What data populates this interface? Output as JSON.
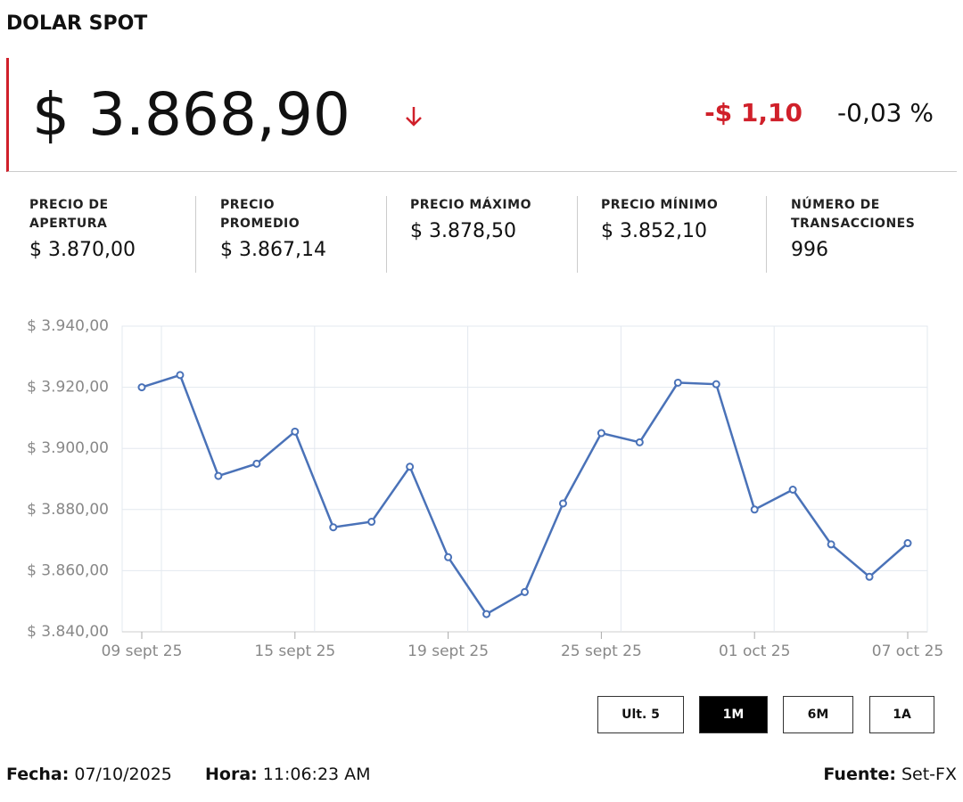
{
  "header": {
    "title": "DOLAR SPOT",
    "price": "$ 3.868,90",
    "change": "-$ 1,10",
    "change_pct": "-0,03 %"
  },
  "stats": [
    {
      "label": "PRECIO DE APERTURA",
      "value": "$ 3.870,00"
    },
    {
      "label": "PRECIO PROMEDIO",
      "value": "$ 3.867,14"
    },
    {
      "label": "PRECIO MÁXIMO",
      "value": "$ 3.878,50"
    },
    {
      "label": "PRECIO MÍNIMO",
      "value": "$ 3.852,10"
    },
    {
      "label": "NÚMERO DE TRANSACCIONES",
      "value": "996"
    }
  ],
  "chart_data": {
    "type": "line",
    "color": "#4a72b8",
    "categories": [
      "09 sept 25",
      null,
      null,
      null,
      "15 sept 25",
      null,
      null,
      null,
      "19 sept 25",
      null,
      null,
      null,
      "25 sept 25",
      null,
      null,
      null,
      "01 oct 25",
      null,
      null,
      null,
      "07 oct 25"
    ],
    "values": [
      3920,
      3924,
      3891,
      3895,
      3905.5,
      3874.2,
      3876,
      3894,
      3864.4,
      3845.8,
      3853,
      3882,
      3905,
      3902,
      3921.5,
      3921,
      3880,
      3886.5,
      3868.6,
      3858,
      3869
    ],
    "ylim": [
      3840,
      3940
    ],
    "yticks": [
      {
        "value": 3840,
        "label": "$ 3.840,00"
      },
      {
        "value": 3860,
        "label": "$ 3.860,00"
      },
      {
        "value": 3880,
        "label": "$ 3.880,00"
      },
      {
        "value": 3900,
        "label": "$ 3.900,00"
      },
      {
        "value": 3920,
        "label": "$ 3.920,00"
      },
      {
        "value": 3940,
        "label": "$ 3.940,00"
      }
    ],
    "grid": true
  },
  "buttons": [
    "Ult. 5",
    "1M",
    "6M",
    "1A"
  ],
  "footer": {
    "date_label": "Fecha:",
    "date": "07/10/2025",
    "time_label": "Hora:",
    "time": "11:06:23 AM",
    "source_label": "Fuente:",
    "source": "Set-FX"
  }
}
